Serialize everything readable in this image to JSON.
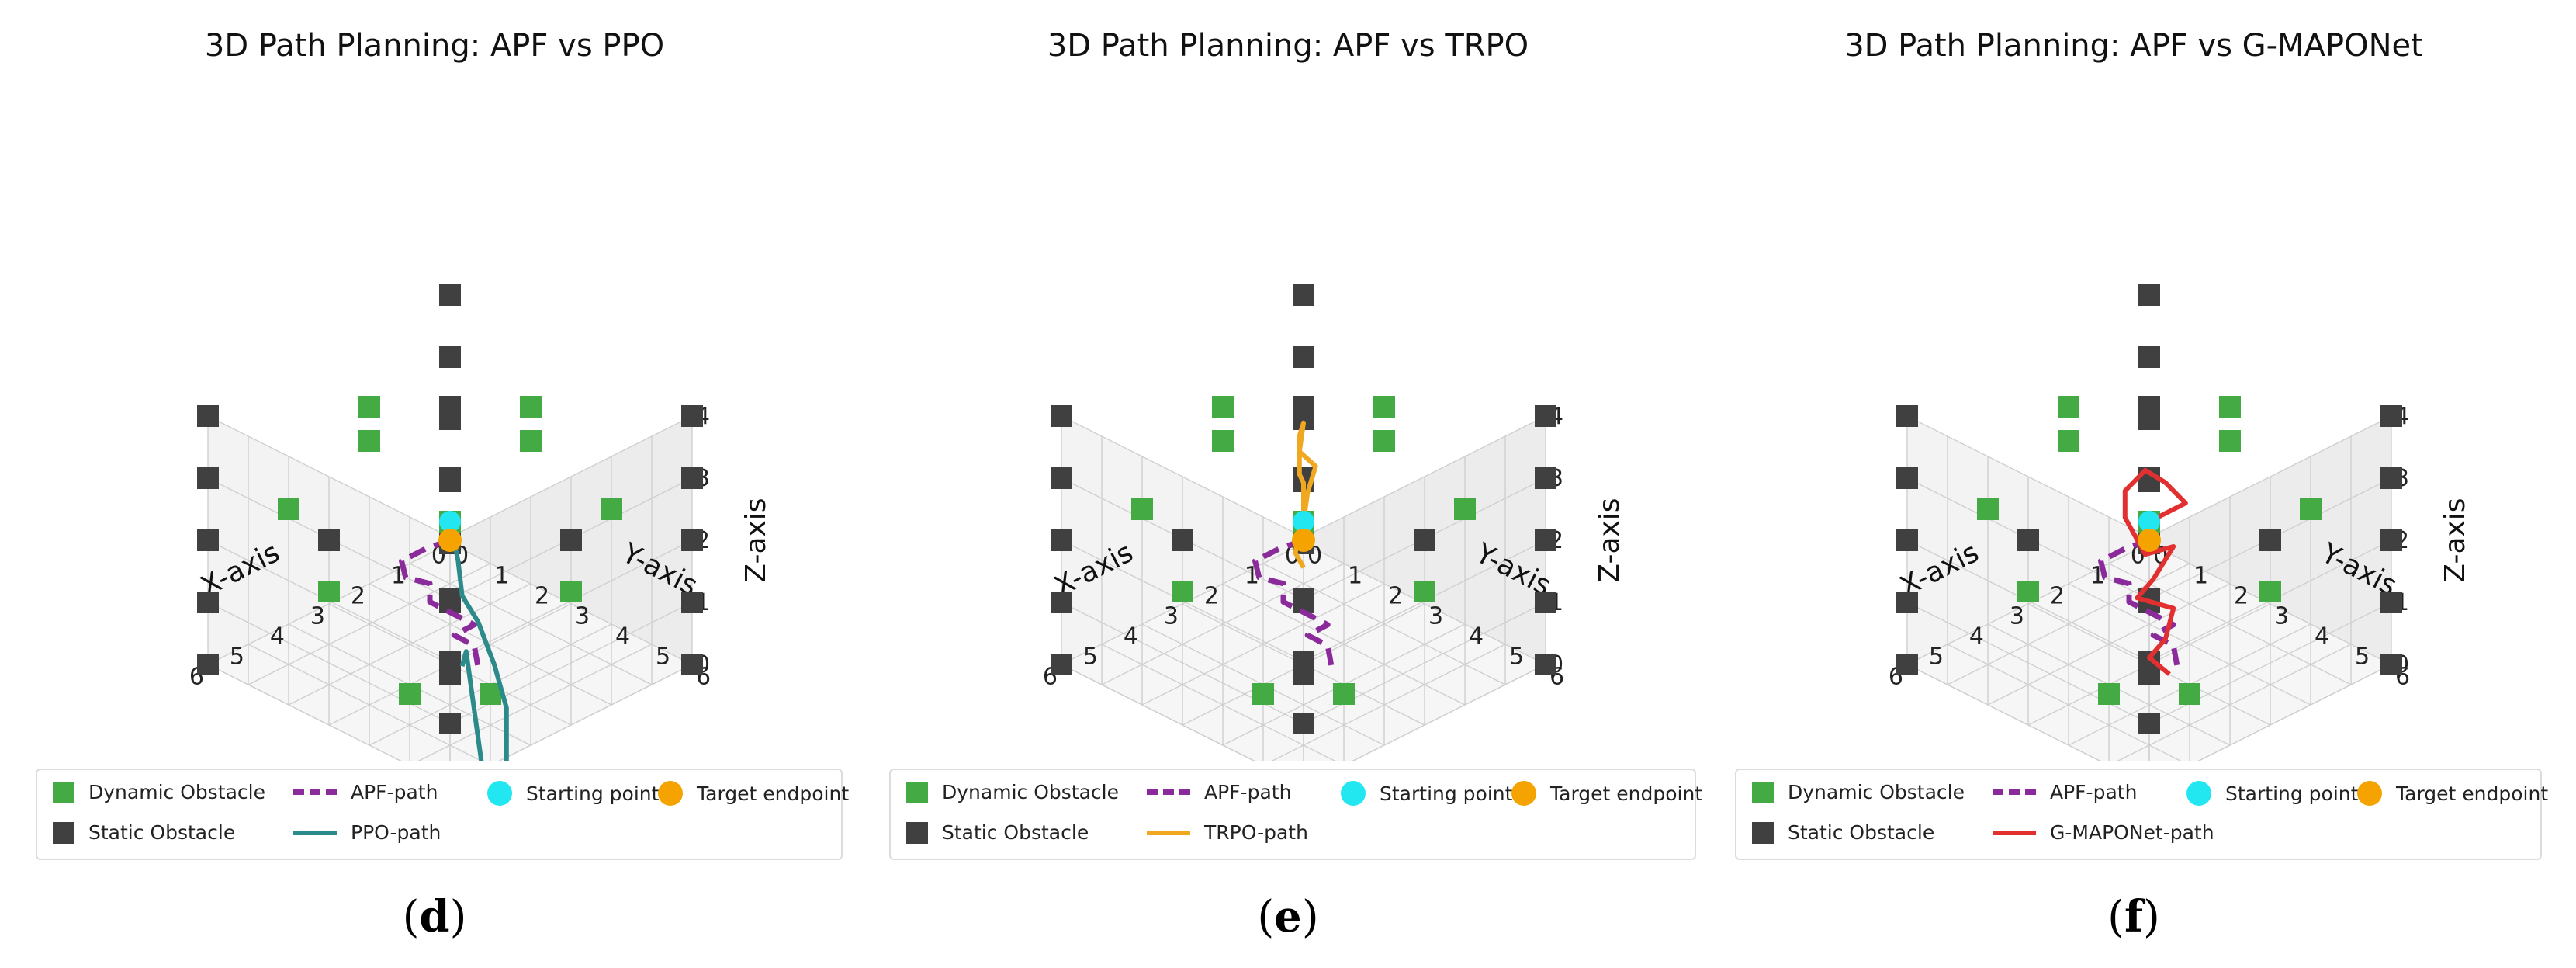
{
  "figure": {
    "colors": {
      "dynamic": "#44aa44",
      "static": "#404040",
      "apf": "#8a2a9b",
      "start": "#22e6f0",
      "target": "#f5a300",
      "ppo": "#2d8a8a",
      "trpo": "#f0a820",
      "gmaponet": "#e23030"
    }
  },
  "chart_data": [
    {
      "type": "scatter3d",
      "title": "3D Path Planning: APF vs PPO",
      "caption_open": "(",
      "caption_letter": "d",
      "caption_close": ")",
      "xlabel": "X-axis",
      "ylabel": "Y-axis",
      "zlabel": "Z-axis",
      "xlim": [
        0,
        6
      ],
      "ylim": [
        0,
        6
      ],
      "zlim": [
        0,
        4
      ],
      "xticks": [
        0,
        1,
        2,
        3,
        4,
        5,
        6
      ],
      "yticks": [
        0,
        1,
        2,
        3,
        4,
        5,
        6
      ],
      "zticks": [
        0,
        1,
        2,
        3,
        4
      ],
      "grid": true,
      "legend": [
        "Dynamic Obstacle",
        "APF-path",
        "Starting point",
        "Target endpoint",
        "Static Obstacle",
        "PPO-path"
      ],
      "path_name": "PPO-path",
      "path_color": "#2d8a8a",
      "path_key": "ppo"
    },
    {
      "type": "scatter3d",
      "title": "3D Path Planning: APF vs TRPO",
      "caption_open": "(",
      "caption_letter": "e",
      "caption_close": ")",
      "xlabel": "X-axis",
      "ylabel": "Y-axis",
      "zlabel": "Z-axis",
      "xlim": [
        0,
        6
      ],
      "ylim": [
        0,
        6
      ],
      "zlim": [
        0,
        4
      ],
      "xticks": [
        0,
        1,
        2,
        3,
        4,
        5,
        6
      ],
      "yticks": [
        0,
        1,
        2,
        3,
        4,
        5,
        6
      ],
      "zticks": [
        0,
        1,
        2,
        3,
        4
      ],
      "grid": true,
      "legend": [
        "Dynamic Obstacle",
        "APF-path",
        "Starting point",
        "Target endpoint",
        "Static Obstacle",
        "TRPO-path"
      ],
      "path_name": "TRPO-path",
      "path_color": "#f0a820",
      "path_key": "trpo"
    },
    {
      "type": "scatter3d",
      "title": "3D Path Planning: APF vs G-MAPONet",
      "caption_open": "(",
      "caption_letter": "f",
      "caption_close": ")",
      "xlabel": "X-axis",
      "ylabel": "Y-axis",
      "zlabel": "Z-axis",
      "xlim": [
        0,
        6
      ],
      "ylim": [
        0,
        6
      ],
      "zlim": [
        0,
        4
      ],
      "xticks": [
        0,
        1,
        2,
        3,
        4,
        5,
        6
      ],
      "yticks": [
        0,
        1,
        2,
        3,
        4,
        5,
        6
      ],
      "zticks": [
        0,
        1,
        2,
        3,
        4
      ],
      "grid": true,
      "legend": [
        "Dynamic Obstacle",
        "APF-path",
        "Starting point",
        "Target endpoint",
        "Static Obstacle",
        "G-MAPONet-path"
      ],
      "path_name": "G-MAPONet-path",
      "path_color": "#e23030",
      "path_key": "gmaponet"
    }
  ],
  "scene": {
    "static_obstacles": [
      [
        0,
        0,
        0
      ],
      [
        0,
        0,
        1
      ],
      [
        0,
        0,
        2
      ],
      [
        0,
        0,
        3
      ],
      [
        0,
        0,
        4
      ],
      [
        6,
        6,
        0
      ],
      [
        6,
        6,
        1
      ],
      [
        6,
        6,
        2
      ],
      [
        6,
        6,
        3
      ],
      [
        6,
        6,
        4
      ],
      [
        0,
        6,
        0
      ],
      [
        0,
        6,
        1
      ],
      [
        0,
        6,
        2
      ],
      [
        0,
        6,
        3
      ],
      [
        0,
        6,
        4
      ],
      [
        6,
        0,
        0
      ],
      [
        6,
        0,
        1
      ],
      [
        6,
        0,
        2
      ],
      [
        6,
        0,
        3
      ],
      [
        6,
        0,
        4
      ],
      [
        3,
        3,
        0
      ],
      [
        3,
        3,
        1
      ],
      [
        3,
        3,
        2
      ],
      [
        3,
        3,
        3
      ],
      [
        3,
        3,
        4
      ],
      [
        1.5,
        4.5,
        2
      ],
      [
        4.5,
        1.5,
        2
      ],
      [
        2,
        2,
        3.5
      ],
      [
        4,
        4,
        0.5
      ]
    ],
    "dynamic_obstacles": [
      [
        1,
        3,
        3.5
      ],
      [
        3,
        1,
        3.5
      ],
      [
        2,
        4,
        3.6
      ],
      [
        4,
        2,
        3.6
      ],
      [
        1,
        5,
        2.5
      ],
      [
        5,
        1,
        2.5
      ],
      [
        2,
        5,
        1.5
      ],
      [
        5,
        2,
        1.5
      ],
      [
        1,
        1,
        1
      ],
      [
        4,
        5,
        0.5
      ],
      [
        5,
        4,
        0.5
      ]
    ],
    "start": [
      3,
      3,
      2.3
    ],
    "target": [
      3,
      3,
      2
    ],
    "apf_path": [
      [
        3,
        3,
        2
      ],
      [
        3.2,
        2.6,
        1.8
      ],
      [
        3.5,
        2.3,
        1.6
      ],
      [
        3.7,
        2.6,
        1.5
      ],
      [
        3.4,
        2.9,
        1.4
      ],
      [
        3.7,
        3.2,
        1.3
      ],
      [
        3.4,
        3.5,
        1.1
      ],
      [
        3.1,
        3.7,
        0.9
      ],
      [
        3.3,
        3.4,
        0.7
      ],
      [
        3.0,
        3.6,
        0.5
      ],
      [
        3.2,
        3.9,
        0.3
      ]
    ],
    "paths": {
      "ppo": [
        [
          3,
          3,
          2.3
        ],
        [
          3.1,
          3.3,
          1.8
        ],
        [
          3.3,
          3.6,
          1.4
        ],
        [
          3.6,
          4.3,
          1.3
        ],
        [
          4.0,
          5.1,
          1.0
        ],
        [
          4.3,
          5.7,
          0.6
        ],
        [
          4.6,
          6.0,
          0.2
        ],
        [
          4.6,
          6.0,
          -0.4
        ],
        [
          4.9,
          5.6,
          -0.6
        ],
        [
          4.4,
          5.2,
          -0.5
        ],
        [
          3.4,
          3.8,
          0.6
        ],
        [
          3.2,
          3.5,
          0.2
        ]
      ],
      "trpo": [
        [
          3,
          3,
          2.3
        ],
        [
          2.7,
          2.8,
          2.6
        ],
        [
          2.4,
          2.7,
          2.9
        ],
        [
          2.7,
          2.6,
          3.2
        ],
        [
          2.4,
          2.4,
          3.5
        ],
        [
          2.3,
          2.2,
          3.2
        ],
        [
          2.8,
          2.7,
          2.9
        ],
        [
          2.5,
          2.5,
          2.6
        ],
        [
          2.8,
          2.8,
          2.2
        ],
        [
          2.5,
          2.4,
          1.9
        ],
        [
          2.8,
          2.6,
          1.6
        ],
        [
          2.6,
          2.6,
          1.3
        ]
      ],
      "gmaponet": [
        [
          3,
          3,
          2.3
        ],
        [
          2.4,
          3.3,
          2.5
        ],
        [
          2.6,
          3.0,
          2.8
        ],
        [
          2.7,
          2.6,
          2.9
        ],
        [
          3.0,
          2.4,
          2.6
        ],
        [
          3.2,
          2.6,
          2.3
        ],
        [
          3.4,
          3.3,
          2.0
        ],
        [
          2.7,
          3.3,
          1.9
        ],
        [
          3.3,
          3.4,
          1.6
        ],
        [
          3.5,
          3.2,
          1.3
        ],
        [
          3.0,
          3.6,
          1.1
        ],
        [
          3.4,
          3.8,
          0.8
        ],
        [
          3.6,
          3.6,
          0.5
        ],
        [
          3.3,
          3.8,
          0.2
        ]
      ]
    }
  }
}
